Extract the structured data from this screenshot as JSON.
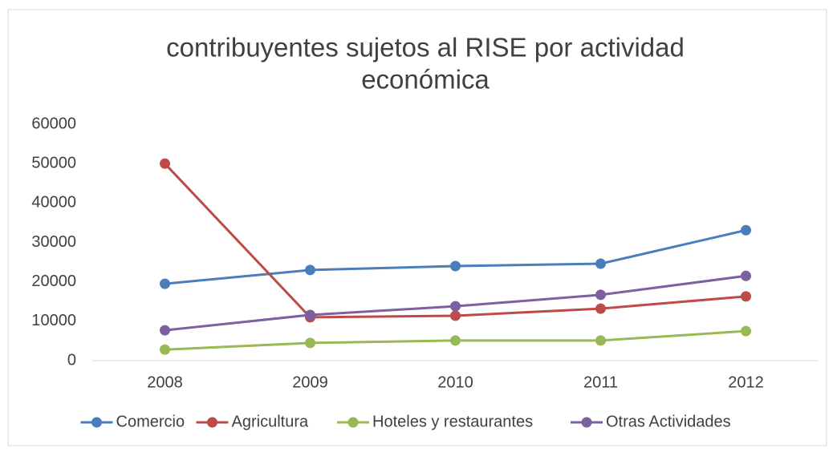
{
  "chart_data": {
    "type": "line",
    "title": [
      "contribuyentes sujetos al RISE por actividad",
      "económica"
    ],
    "categories": [
      "2008",
      "2009",
      "2010",
      "2011",
      "2012"
    ],
    "series": [
      {
        "name": "Comercio",
        "color": "#4a7ebb",
        "values": [
          19500,
          23000,
          24000,
          24600,
          33100
        ]
      },
      {
        "name": "Agricultura",
        "color": "#be4b48",
        "values": [
          50000,
          11000,
          11400,
          13200,
          16300
        ]
      },
      {
        "name": "Hoteles y restaurantes",
        "color": "#98b954",
        "values": [
          2800,
          4500,
          5100,
          5100,
          7500
        ]
      },
      {
        "name": "Otras Actividades",
        "color": "#7d60a0",
        "values": [
          7700,
          11600,
          13800,
          16700,
          21500
        ]
      }
    ],
    "ylim": [
      0,
      60000
    ],
    "yticks": [
      0,
      10000,
      20000,
      30000,
      40000,
      50000,
      60000
    ],
    "grid": false,
    "legend": "bottom"
  }
}
